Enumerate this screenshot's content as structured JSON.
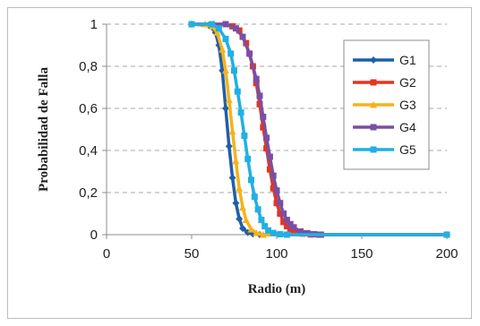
{
  "chart_data": {
    "type": "line",
    "title": "",
    "xlabel": "Radio  (m)",
    "ylabel": "Probabilidad  de  Falla",
    "xlim": [
      0,
      200
    ],
    "ylim": [
      0,
      1
    ],
    "x_ticks": [
      "0",
      "50",
      "100",
      "150",
      "200"
    ],
    "y_ticks": [
      "0",
      "0,2",
      "0,4",
      "0,6",
      "0,8",
      "1"
    ],
    "grid": "horizontal dashed",
    "legend_position": "right",
    "series": [
      {
        "name": "G1",
        "color": "#1f5fa8",
        "marker": "diamond",
        "points": [
          [
            50,
            1
          ],
          [
            60,
            0.995
          ],
          [
            62,
            0.985
          ],
          [
            64,
            0.96
          ],
          [
            66,
            0.9
          ],
          [
            68,
            0.78
          ],
          [
            70,
            0.6
          ],
          [
            72,
            0.42
          ],
          [
            74,
            0.27
          ],
          [
            76,
            0.15
          ],
          [
            78,
            0.075
          ],
          [
            80,
            0.03
          ],
          [
            83,
            0.01
          ],
          [
            86,
            0.003
          ],
          [
            90,
            0
          ],
          [
            200,
            0
          ]
        ]
      },
      {
        "name": "G2",
        "color": "#e8341c",
        "marker": "square",
        "points": [
          [
            50,
            1
          ],
          [
            70,
            1
          ],
          [
            74,
            0.99
          ],
          [
            78,
            0.97
          ],
          [
            82,
            0.91
          ],
          [
            86,
            0.8
          ],
          [
            88,
            0.72
          ],
          [
            90,
            0.62
          ],
          [
            92,
            0.51
          ],
          [
            94,
            0.41
          ],
          [
            96,
            0.31
          ],
          [
            98,
            0.22
          ],
          [
            100,
            0.15
          ],
          [
            102,
            0.1
          ],
          [
            104,
            0.06
          ],
          [
            106,
            0.04
          ],
          [
            108,
            0.025
          ],
          [
            110,
            0.015
          ],
          [
            115,
            0.005
          ],
          [
            120,
            0.001
          ],
          [
            125,
            0
          ],
          [
            200,
            0
          ]
        ]
      },
      {
        "name": "G3",
        "color": "#f7b21a",
        "marker": "triangle",
        "points": [
          [
            50,
            1
          ],
          [
            58,
            1
          ],
          [
            62,
            0.99
          ],
          [
            65,
            0.96
          ],
          [
            68,
            0.88
          ],
          [
            70,
            0.78
          ],
          [
            72,
            0.64
          ],
          [
            74,
            0.49
          ],
          [
            76,
            0.35
          ],
          [
            78,
            0.22
          ],
          [
            80,
            0.13
          ],
          [
            82,
            0.07
          ],
          [
            85,
            0.025
          ],
          [
            88,
            0.008
          ],
          [
            92,
            0
          ],
          [
            200,
            0
          ]
        ]
      },
      {
        "name": "G4",
        "color": "#7a4fa3",
        "marker": "square",
        "points": [
          [
            50,
            1
          ],
          [
            70,
            1
          ],
          [
            76,
            0.98
          ],
          [
            80,
            0.94
          ],
          [
            84,
            0.86
          ],
          [
            88,
            0.74
          ],
          [
            90,
            0.66
          ],
          [
            92,
            0.56
          ],
          [
            94,
            0.46
          ],
          [
            96,
            0.37
          ],
          [
            98,
            0.28
          ],
          [
            100,
            0.21
          ],
          [
            102,
            0.15
          ],
          [
            104,
            0.1
          ],
          [
            106,
            0.07
          ],
          [
            108,
            0.05
          ],
          [
            110,
            0.035
          ],
          [
            114,
            0.015
          ],
          [
            118,
            0.007
          ],
          [
            122,
            0.002
          ],
          [
            126,
            0
          ],
          [
            200,
            0
          ]
        ]
      },
      {
        "name": "G5",
        "color": "#20b0e3",
        "marker": "square",
        "points": [
          [
            50,
            1
          ],
          [
            62,
            1
          ],
          [
            66,
            0.98
          ],
          [
            70,
            0.93
          ],
          [
            73,
            0.86
          ],
          [
            75,
            0.78
          ],
          [
            77,
            0.68
          ],
          [
            79,
            0.58
          ],
          [
            81,
            0.47
          ],
          [
            83,
            0.36
          ],
          [
            85,
            0.26
          ],
          [
            87,
            0.18
          ],
          [
            89,
            0.12
          ],
          [
            91,
            0.07
          ],
          [
            93,
            0.04
          ],
          [
            95,
            0.02
          ],
          [
            98,
            0.008
          ],
          [
            102,
            0.002
          ],
          [
            106,
            0
          ],
          [
            200,
            0
          ]
        ]
      }
    ]
  }
}
